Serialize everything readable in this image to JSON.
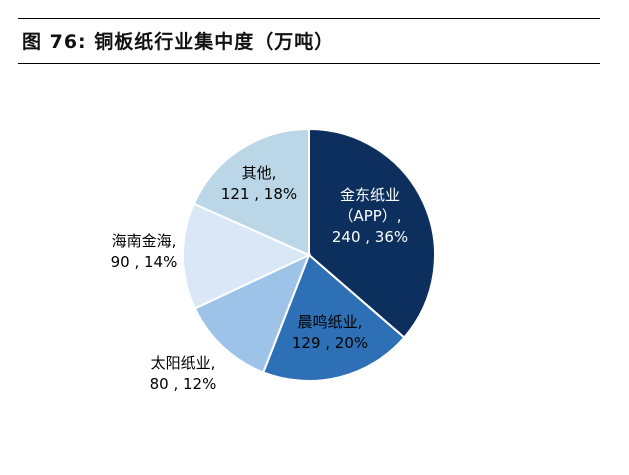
{
  "title": "图 76:  铜板纸行业集中度（万吨）",
  "chart_data": {
    "type": "pie",
    "unit": "万吨",
    "slices": [
      {
        "label_lines": [
          "金东纸业",
          "（APP）,",
          "240 , 36%"
        ],
        "name": "金东纸业（APP）",
        "value": 240,
        "percent": 36,
        "color": "#0d2f5e",
        "text_color": "#ffffff"
      },
      {
        "label_lines": [
          "晨鸣纸业,",
          "129 , 20%"
        ],
        "name": "晨鸣纸业",
        "value": 129,
        "percent": 20,
        "color": "#2e70b5",
        "text_color": "#000000"
      },
      {
        "label_lines": [
          "太阳纸业,",
          "80 , 12%"
        ],
        "name": "太阳纸业",
        "value": 80,
        "percent": 12,
        "color": "#9ec3e8",
        "text_color": "#000000"
      },
      {
        "label_lines": [
          "海南金海,",
          "90 , 14%"
        ],
        "name": "海南金海",
        "value": 90,
        "percent": 14,
        "color": "#d9e7f6",
        "text_color": "#000000"
      },
      {
        "label_lines": [
          "其他,",
          "121 , 18%"
        ],
        "name": "其他",
        "value": 121,
        "percent": 18,
        "color": "#bbd6e6",
        "text_color": "#000000"
      }
    ]
  }
}
